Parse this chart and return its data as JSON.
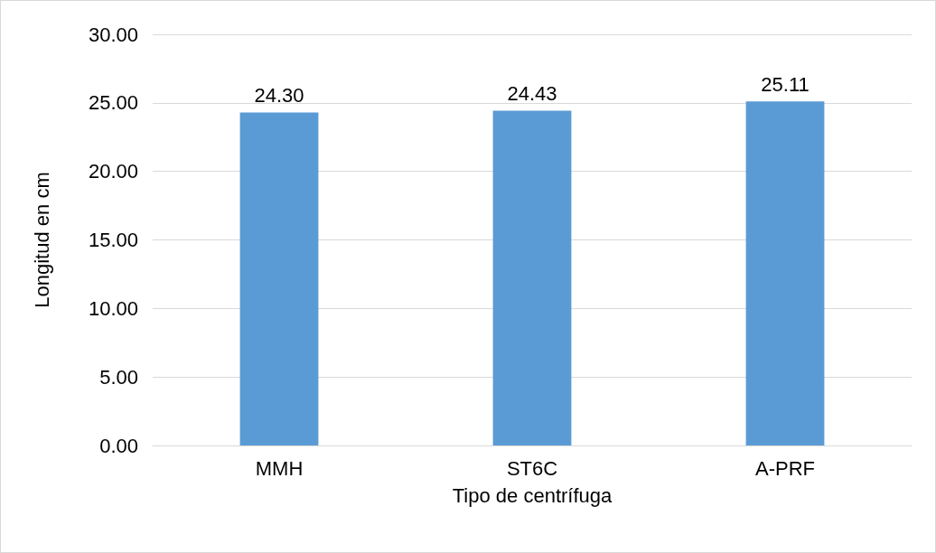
{
  "chart_data": {
    "type": "bar",
    "xlabel": "Tipo de centrífuga",
    "ylabel": "Longitud en cm",
    "categories": [
      "MMH",
      "ST6C",
      "A-PRF"
    ],
    "values": [
      24.3,
      24.43,
      25.11
    ],
    "value_labels": [
      "24.30",
      "24.43",
      "25.11"
    ],
    "color": "#5b9bd5",
    "ylim": [
      0,
      30
    ],
    "yticks": [
      {
        "value": 0,
        "label": "0.00"
      },
      {
        "value": 5,
        "label": "5.00"
      },
      {
        "value": 10,
        "label": "10.00"
      },
      {
        "value": 15,
        "label": "15.00"
      },
      {
        "value": 20,
        "label": "20.00"
      },
      {
        "value": 25,
        "label": "25.00"
      },
      {
        "value": 30,
        "label": "30.00"
      }
    ],
    "grid": "y"
  }
}
